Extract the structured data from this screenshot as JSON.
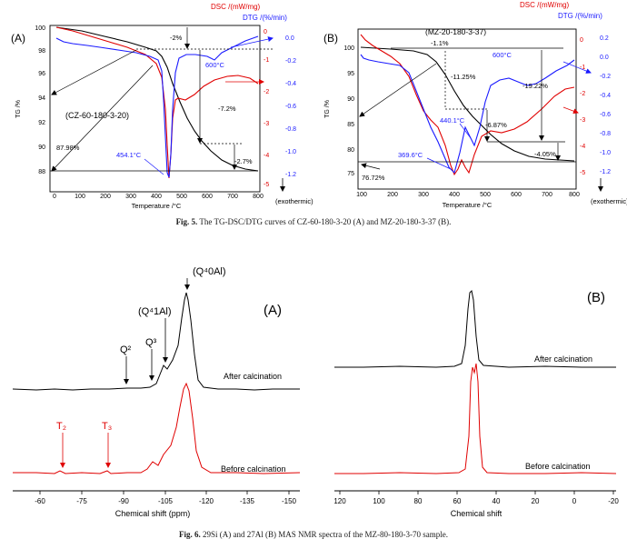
{
  "fig5": {
    "caption_label": "Fig. 5.",
    "caption_text": " The TG-DSC/DTG curves of CZ-60-180-3-20 (A) and MZ-20-180-3-37 (B).",
    "panelA": {
      "letter": "(A)",
      "sample": "(CZ-60-180-3-20)",
      "tg_label": "TG /%",
      "dsc_label": "DSC /(mW/mg)",
      "dtg_label": "DTG /(%/min)",
      "xlabel": "Temperature /°C",
      "exo": "(exothermic)",
      "x_ticks": [
        "0",
        "100",
        "200",
        "300",
        "400",
        "500",
        "600",
        "700",
        "800"
      ],
      "tg_ticks": [
        "100",
        "98",
        "96",
        "94",
        "92",
        "90",
        "88"
      ],
      "dsc_ticks": [
        "0",
        "-1",
        "-2",
        "-3",
        "-4",
        "-5"
      ],
      "dtg_ticks": [
        "0.0",
        "-0.2",
        "-0.4",
        "-0.6",
        "-0.8",
        "-1.0",
        "-1.2"
      ],
      "annotations": [
        "-2%",
        "-7.2%",
        "-2.7%",
        "87.98%",
        "600°C",
        "454.1°C"
      ]
    },
    "panelB": {
      "letter": "(B)",
      "sample": "(MZ-20-180-3-37)",
      "tg_label": "TG /%",
      "dsc_label": "DSC /(mW/mg)",
      "dtg_label": "DTG /(%/min)",
      "xlabel": "Temperature /°C",
      "exo": "(exothermic)",
      "x_ticks": [
        "100",
        "200",
        "300",
        "400",
        "500",
        "600",
        "700",
        "800"
      ],
      "tg_ticks": [
        "100",
        "95",
        "90",
        "85",
        "80",
        "75"
      ],
      "dsc_ticks": [
        "0",
        "-1",
        "-2",
        "-3",
        "-4",
        "-5"
      ],
      "dtg_ticks": [
        "0.2",
        "0.0",
        "-0.2",
        "-0.4",
        "-0.6",
        "-0.8",
        "-1.0",
        "-1.2"
      ],
      "annotations": [
        "-1.1%",
        "-11.25%",
        "-19.22%",
        "-6.87%",
        "-4.05%",
        "76.72%",
        "600°C",
        "440.1°C",
        "369.6°C"
      ]
    }
  },
  "fig6": {
    "caption_label": "Fig. 6.",
    "caption_text": " 29Si (A) and 27Al (B) MAS NMR spectra of the MZ-80-180-3-70 sample.",
    "panelA": {
      "letter": "(A)",
      "xlabel": "Chemical shift (ppm)",
      "x_ticks": [
        "-60",
        "-75",
        "-90",
        "-105",
        "-120",
        "-135",
        "-150"
      ],
      "after": "After calcination",
      "before": "Before calcination",
      "peaks": [
        "(Q⁴0Al)",
        "(Q⁴1Al)",
        "Q³",
        "Q²",
        "T₂",
        "T₃"
      ]
    },
    "panelB": {
      "letter": "(B)",
      "xlabel": "Chemical shift",
      "x_ticks": [
        "120",
        "100",
        "80",
        "60",
        "40",
        "20",
        "0",
        "-20"
      ],
      "after": "After calcination",
      "before": "Before calcination"
    }
  }
}
